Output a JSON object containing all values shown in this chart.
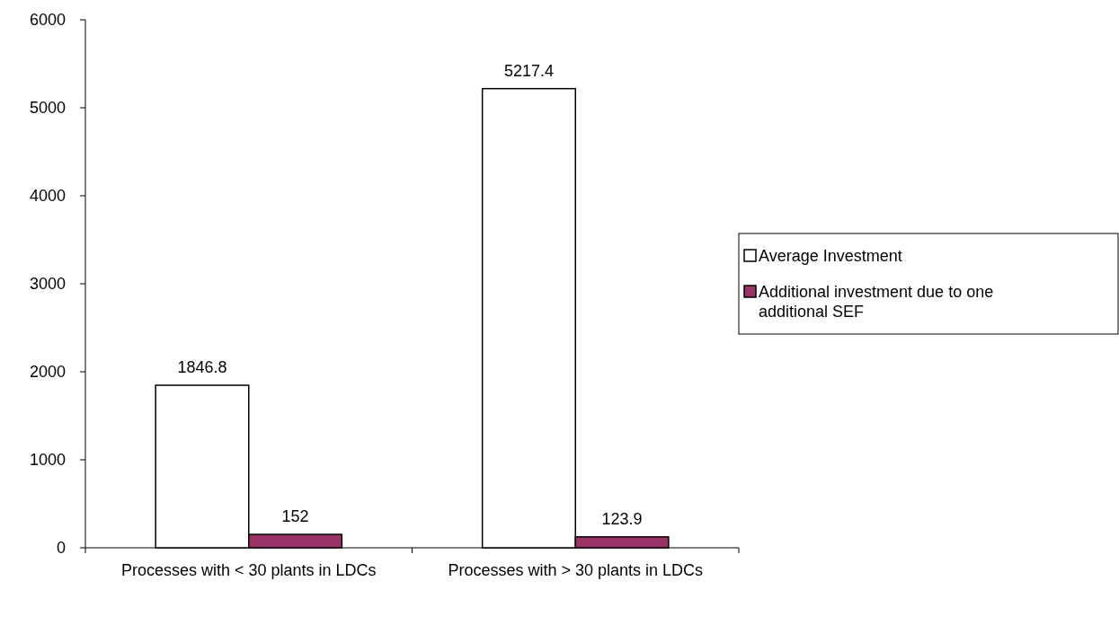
{
  "chart_data": {
    "type": "bar",
    "categories": [
      "Processes with < 30 plants in LDCs",
      "Processes with > 30 plants in LDCs"
    ],
    "series": [
      {
        "name": "Average Investment",
        "color": "#ffffff",
        "values": [
          1846.8,
          5217.4
        ]
      },
      {
        "name": "Additional investment due to one additional SEF",
        "color": "#993366",
        "values": [
          152,
          123.9
        ]
      }
    ],
    "ylim": [
      0,
      6000
    ],
    "yticks": [
      0,
      1000,
      2000,
      3000,
      4000,
      5000,
      6000
    ],
    "data_labels": true,
    "legend": "right",
    "grid": false
  }
}
